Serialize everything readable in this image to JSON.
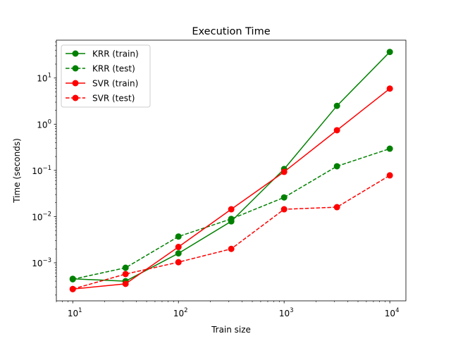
{
  "chart_data": {
    "type": "line",
    "title": "Execution Time",
    "xlabel": "Train size",
    "ylabel": "Time (seconds)",
    "xscale": "log",
    "yscale": "log",
    "xlim": [
      7.0,
      14200
    ],
    "ylim": [
      0.00015,
      66
    ],
    "grid": false,
    "legend_position": "top-left",
    "x": [
      10,
      31.6,
      100,
      316,
      1000,
      3162,
      10000
    ],
    "x_ticks": [
      {
        "base": "10",
        "exp": "1",
        "value": 10
      },
      {
        "base": "10",
        "exp": "2",
        "value": 100
      },
      {
        "base": "10",
        "exp": "3",
        "value": 1000
      },
      {
        "base": "10",
        "exp": "4",
        "value": 10000
      }
    ],
    "y_ticks": [
      {
        "base": "10",
        "exp": "−3",
        "value": 0.001
      },
      {
        "base": "10",
        "exp": "−2",
        "value": 0.01
      },
      {
        "base": "10",
        "exp": "−1",
        "value": 0.1
      },
      {
        "base": "10",
        "exp": "0",
        "value": 1
      },
      {
        "base": "10",
        "exp": "1",
        "value": 10
      }
    ],
    "series": [
      {
        "name": "KRR (train)",
        "color": "#008000",
        "dash": false,
        "values": [
          0.00045,
          0.0004,
          0.0016,
          0.0079,
          0.107,
          2.5,
          36.7
        ]
      },
      {
        "name": "KRR (test)",
        "color": "#008000",
        "dash": true,
        "values": [
          0.00044,
          0.00078,
          0.0037,
          0.0089,
          0.026,
          0.123,
          0.295
        ]
      },
      {
        "name": "SVR (train)",
        "color": "#ff0000",
        "dash": false,
        "values": [
          0.00027,
          0.00035,
          0.0022,
          0.0144,
          0.093,
          0.74,
          5.9
        ]
      },
      {
        "name": "SVR (test)",
        "color": "#ff0000",
        "dash": true,
        "values": [
          0.00027,
          0.00057,
          0.00103,
          0.002,
          0.0144,
          0.016,
          0.078
        ]
      }
    ]
  }
}
